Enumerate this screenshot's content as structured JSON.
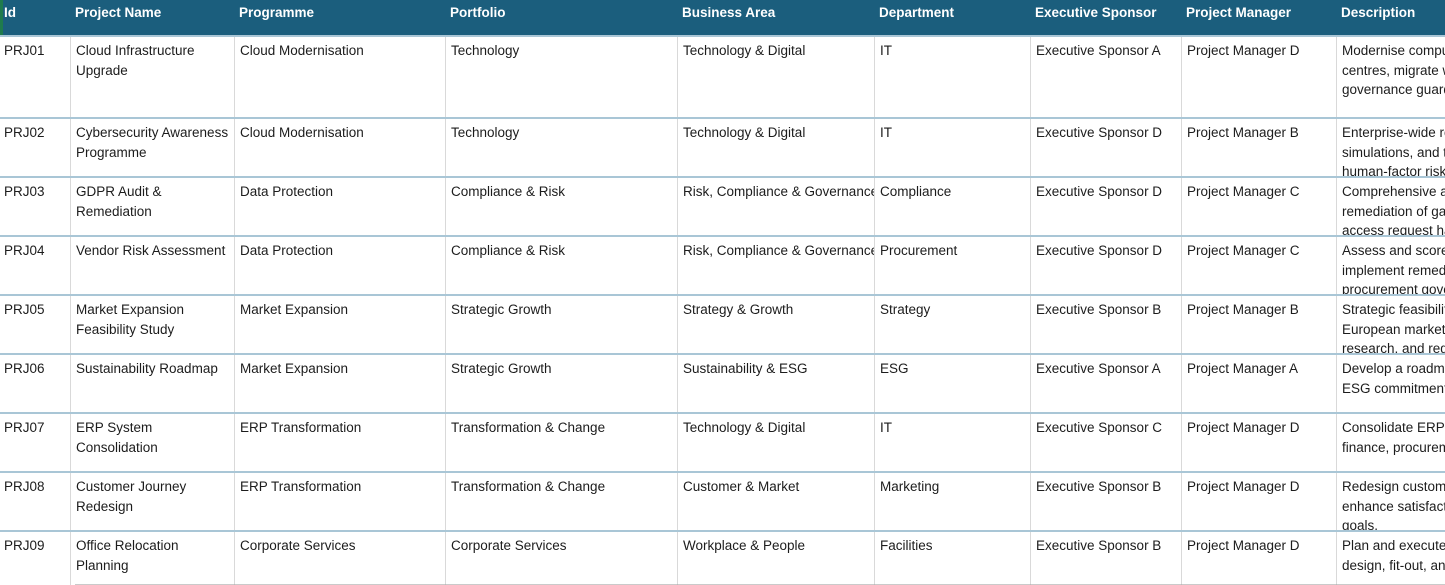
{
  "columns": {
    "id": "Id",
    "project_name": "Project Name",
    "programme": "Programme",
    "portfolio": "Portfolio",
    "business_area": "Business Area",
    "department": "Department",
    "executive_sponsor": "Executive Sponsor",
    "project_manager": "Project Manager",
    "description": "Description"
  },
  "colors": {
    "header_bg": "#1b5e7d",
    "header_text": "#ffffff",
    "row_separator": "#a9c6d6",
    "column_separator": "#d9d9d9",
    "accent_green": "#1f7b4d",
    "body_text": "#1c1c1c"
  },
  "rows": [
    {
      "id": "PRJ01",
      "project_name": "Cloud Infrastructure\nUpgrade",
      "programme": "Cloud Modernisation",
      "portfolio": "Technology",
      "business_area": "Technology & Digital",
      "department": "IT",
      "executive_sponsor": "Executive Sponsor A",
      "project_manager": "Project Manager D",
      "description": "Modernise compu\ncentres, migrate w\ngovernance guard"
    },
    {
      "id": "PRJ02",
      "project_name": "Cybersecurity Awareness\nProgramme",
      "programme": "Cloud Modernisation",
      "portfolio": "Technology",
      "business_area": "Technology & Digital",
      "department": "IT",
      "executive_sponsor": "Executive Sponsor D",
      "project_manager": "Project Manager B",
      "description": "Enterprise-wide ro\nsimulations, and t\nhuman-factor risk"
    },
    {
      "id": "PRJ03",
      "project_name": "GDPR Audit &\nRemediation",
      "programme": "Data Protection",
      "portfolio": "Compliance & Risk",
      "business_area": "Risk, Compliance & Governance",
      "department": "Compliance",
      "executive_sponsor": "Executive Sponsor D",
      "project_manager": "Project Manager C",
      "description": "Comprehensive au\nremediation of gap\naccess request ha"
    },
    {
      "id": "PRJ04",
      "project_name": "Vendor Risk Assessment",
      "programme": "Data Protection",
      "portfolio": "Compliance & Risk",
      "business_area": "Risk, Compliance & Governance",
      "department": "Procurement",
      "executive_sponsor": "Executive Sponsor D",
      "project_manager": "Project Manager C",
      "description": "Assess and score\nimplement remedi\nprocurement gove"
    },
    {
      "id": "PRJ05",
      "project_name": "Market Expansion\nFeasibility Study",
      "programme": "Market Expansion",
      "portfolio": "Strategic Growth",
      "business_area": "Strategy & Growth",
      "department": "Strategy",
      "executive_sponsor": "Executive Sponsor B",
      "project_manager": "Project Manager B",
      "description": "Strategic feasibilit\nEuropean markets\nresearch, and regu"
    },
    {
      "id": "PRJ06",
      "project_name": "Sustainability Roadmap",
      "programme": "Market Expansion",
      "portfolio": "Strategic Growth",
      "business_area": "Sustainability & ESG",
      "department": "ESG",
      "executive_sponsor": "Executive Sponsor A",
      "project_manager": "Project Manager A",
      "description": "Develop a roadma\nESG commitment"
    },
    {
      "id": "PRJ07",
      "project_name": "ERP System\nConsolidation",
      "programme": "ERP Transformation",
      "portfolio": "Transformation & Change",
      "business_area": "Technology & Digital",
      "department": "IT",
      "executive_sponsor": "Executive Sponsor C",
      "project_manager": "Project Manager D",
      "description": "Consolidate ERP i\nfinance, procurem"
    },
    {
      "id": "PRJ08",
      "project_name": "Customer Journey\nRedesign",
      "programme": "ERP Transformation",
      "portfolio": "Transformation & Change",
      "business_area": "Customer & Market",
      "department": "Marketing",
      "executive_sponsor": "Executive Sponsor B",
      "project_manager": "Project Manager D",
      "description": "Redesign custome\nenhance satisfact\ngoals."
    },
    {
      "id": "PRJ09",
      "project_name": "Office Relocation\nPlanning",
      "programme": "Corporate Services",
      "portfolio": "Corporate Services",
      "business_area": "Workplace & People",
      "department": "Facilities",
      "executive_sponsor": "Executive Sponsor B",
      "project_manager": "Project Manager D",
      "description": "Plan and execute\ndesign, fit-out, an"
    }
  ]
}
